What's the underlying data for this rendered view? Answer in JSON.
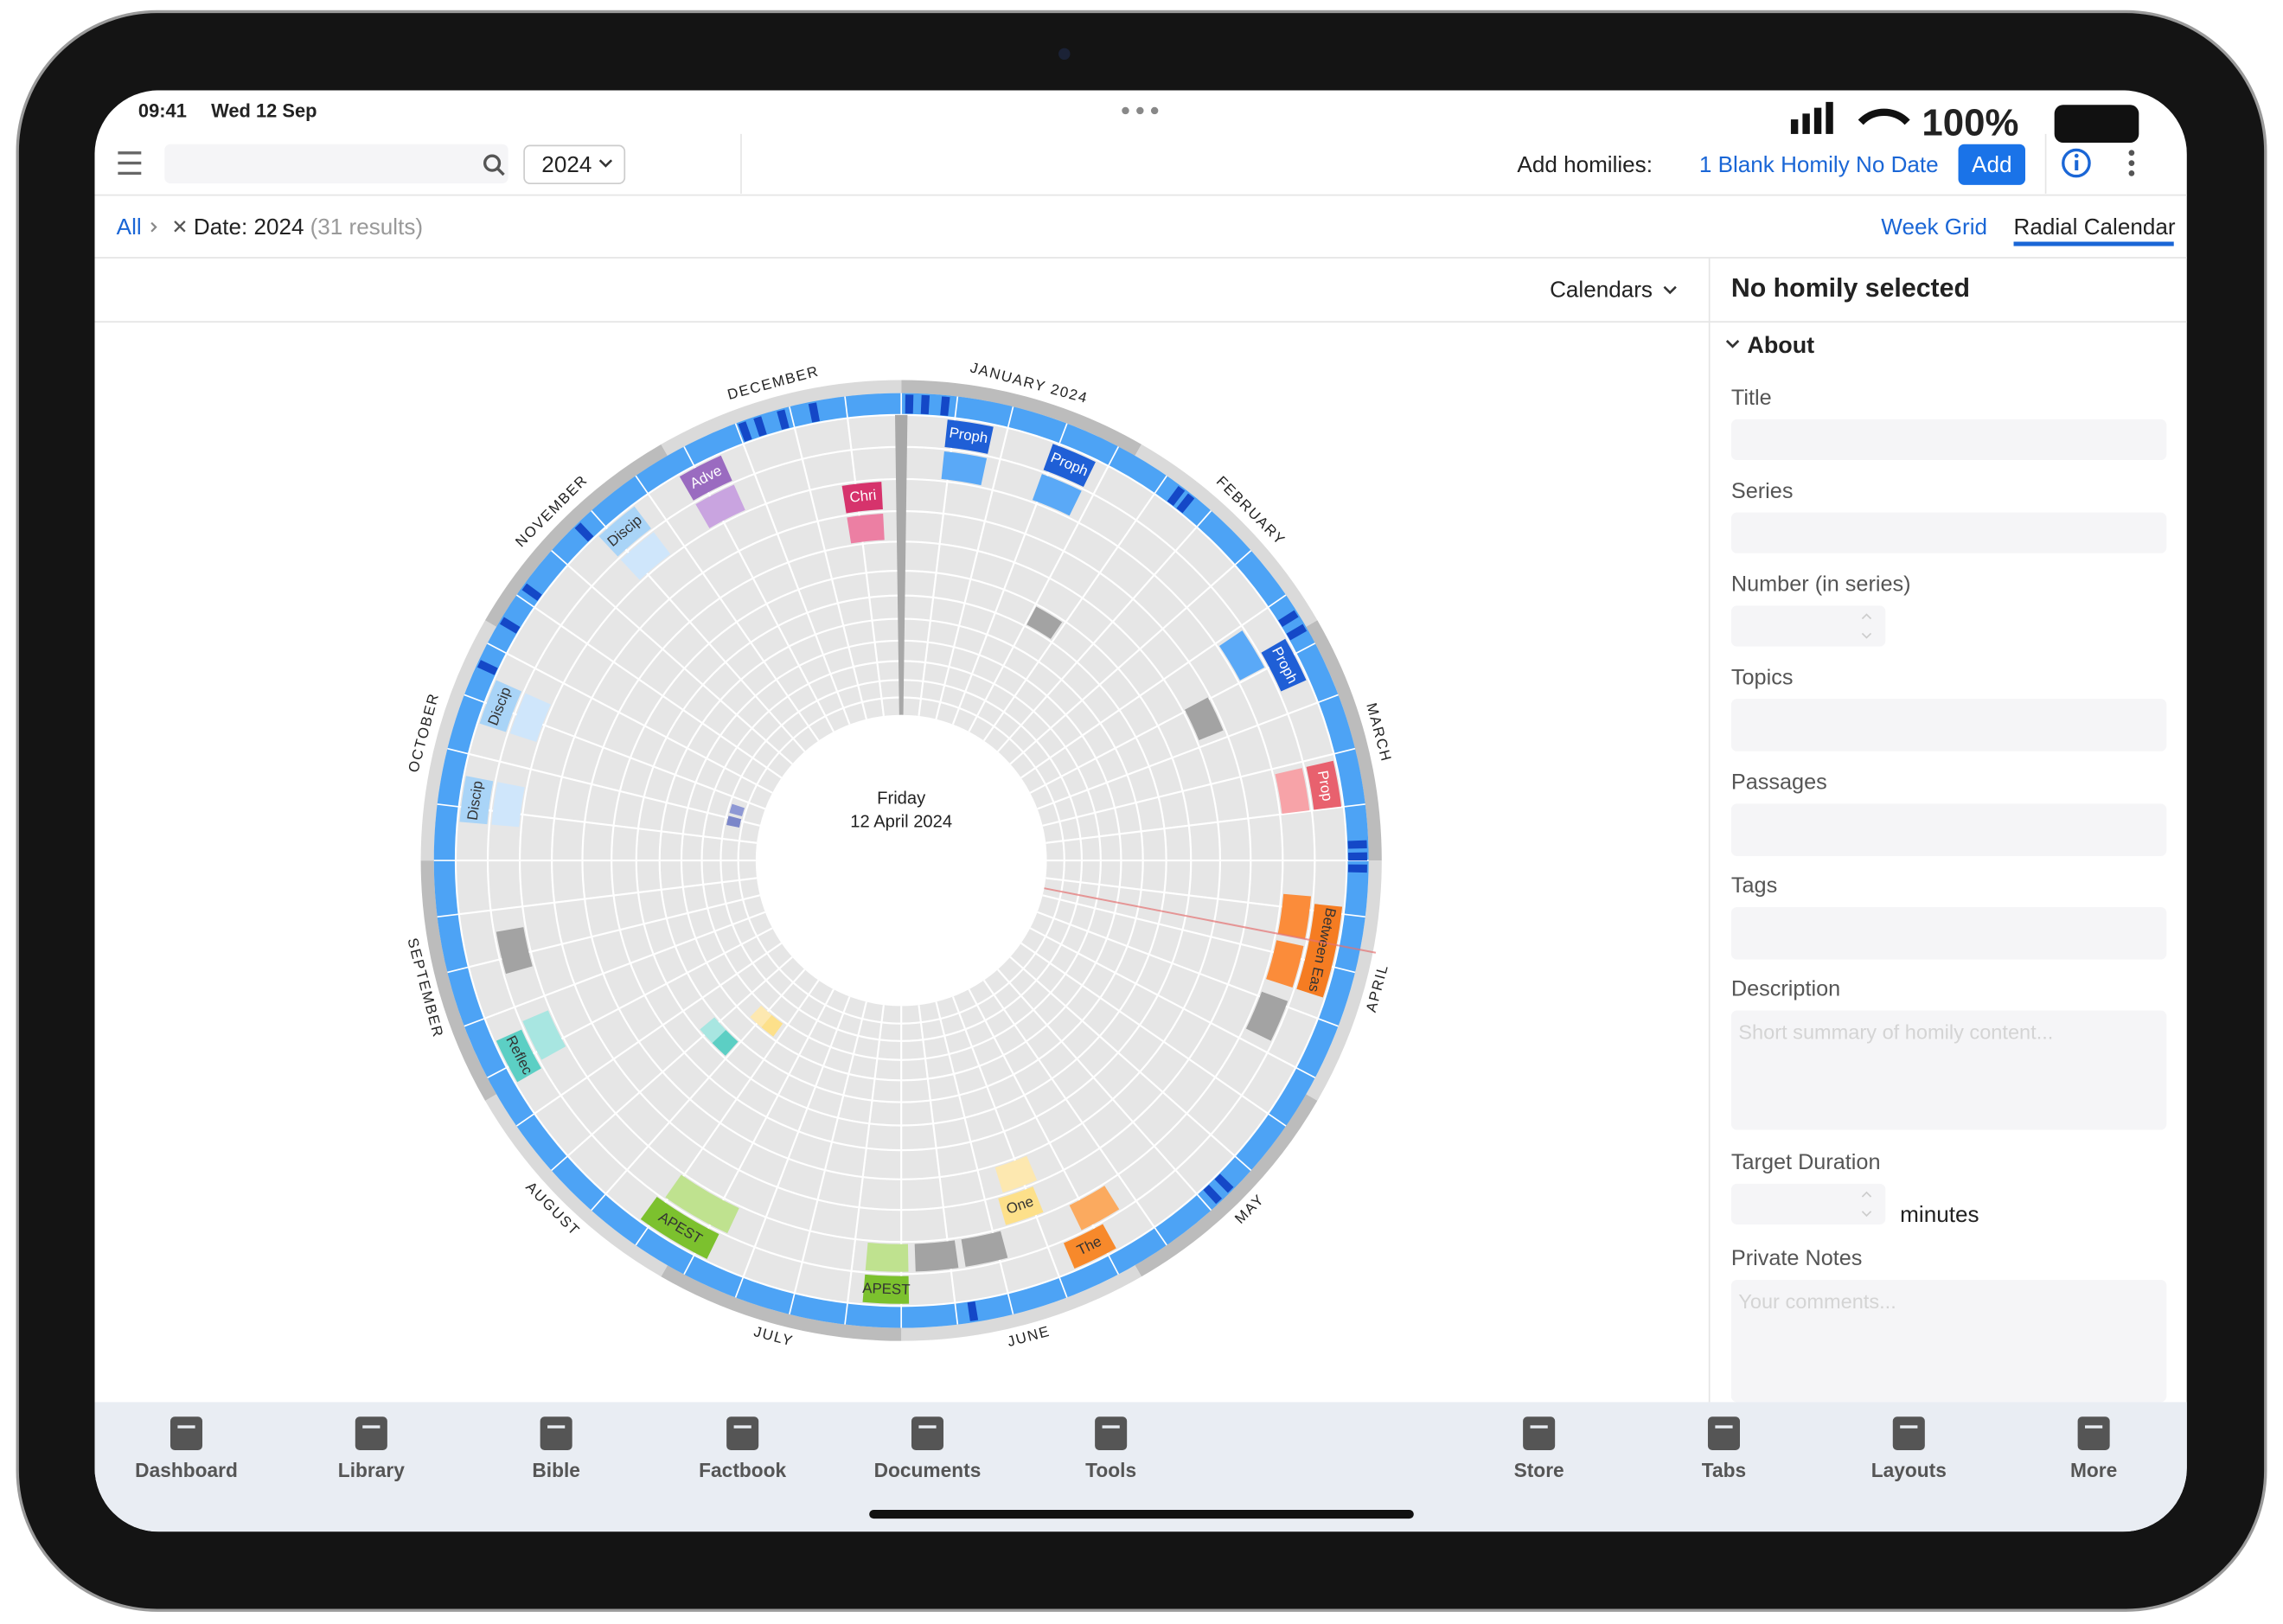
{
  "status_bar": {
    "time": "09:41",
    "date": "Wed 12 Sep",
    "battery": "100%"
  },
  "toolbar": {
    "year": "2024",
    "add_label": "Add homilies:",
    "blank_homily": "1 Blank Homily No Date",
    "add_button": "Add"
  },
  "breadcrumb": {
    "root": "All",
    "filter": "Date: 2024",
    "results": "(31 results)"
  },
  "view_tabs": [
    "Week Grid",
    "Radial Calendar"
  ],
  "calendars_menu": "Calendars",
  "radial_calendar": {
    "center_day": "Friday",
    "center_date": "12 April 2024",
    "months": [
      "JANUARY 2024",
      "FEBRUARY",
      "MARCH",
      "APRIL",
      "MAY",
      "JUNE",
      "JULY",
      "AUGUST",
      "SEPTEMBER",
      "OCTOBER",
      "NOVEMBER",
      "DECEMBER"
    ],
    "events": [
      "Proph",
      "Proph",
      "Proph",
      "Prop",
      "Between Eas",
      "The",
      "One",
      "APEST",
      "APEST",
      "Reflec",
      "Discip",
      "Discip",
      "Discip",
      "Adve",
      "Chri"
    ]
  },
  "detail_panel": {
    "heading": "No homily selected",
    "section": "About",
    "fields": [
      {
        "label": "Title"
      },
      {
        "label": "Series"
      },
      {
        "label": "Number (in series)"
      },
      {
        "label": "Topics"
      },
      {
        "label": "Passages"
      },
      {
        "label": "Tags"
      },
      {
        "label": "Description",
        "placeholder": "Short summary of homily content..."
      },
      {
        "label": "Target Duration",
        "unit": "minutes"
      },
      {
        "label": "Private Notes",
        "placeholder": "Your comments..."
      }
    ]
  },
  "bottom_nav": [
    "Dashboard",
    "Library",
    "Bible",
    "Factbook",
    "Documents",
    "Tools",
    "Store",
    "Tabs",
    "Layouts",
    "More"
  ]
}
